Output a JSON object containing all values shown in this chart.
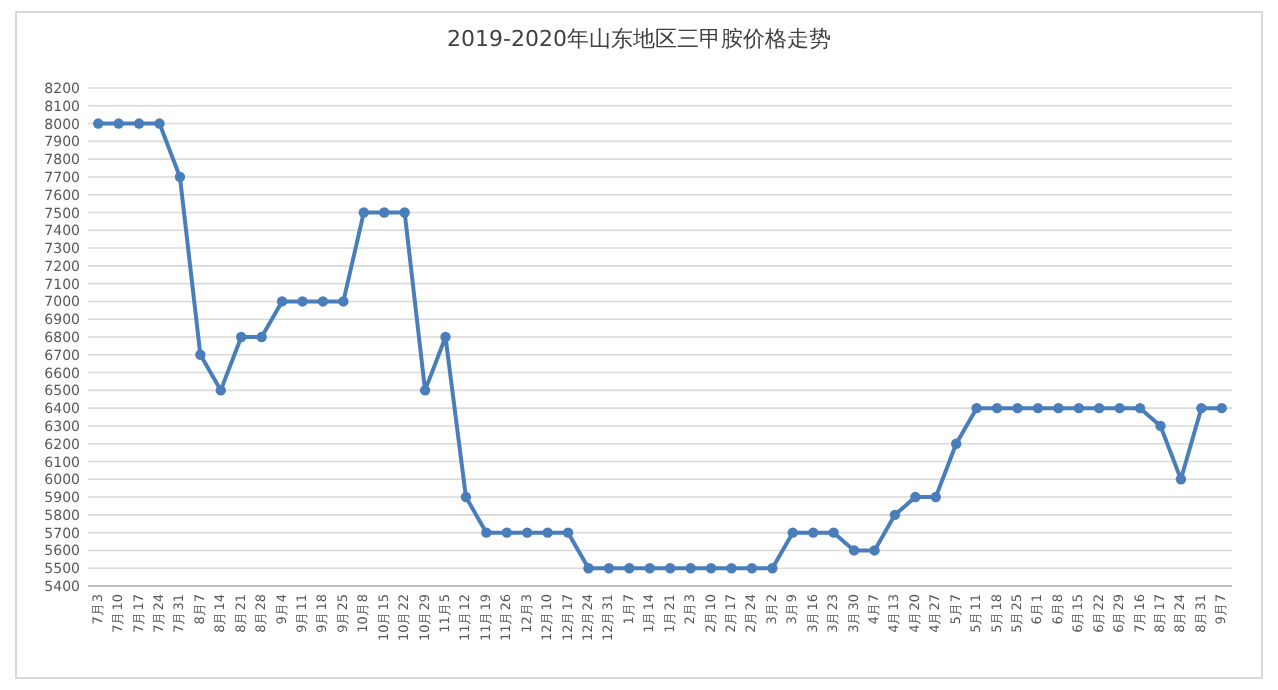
{
  "chart_data": {
    "type": "line",
    "title": "2019-2020年山东地区三甲胺价格走势",
    "categories": [
      "7月3",
      "7月10",
      "7月17",
      "7月24",
      "7月31",
      "8月7",
      "8月14",
      "8月21",
      "8月28",
      "9月4",
      "9月11",
      "9月18",
      "9月25",
      "10月8",
      "10月15",
      "10月22",
      "10月29",
      "11月5",
      "11月12",
      "11月19",
      "11月26",
      "12月3",
      "12月10",
      "12月17",
      "12月24",
      "12月31",
      "1月7",
      "1月14",
      "1月21",
      "2月3",
      "2月10",
      "2月17",
      "2月24",
      "3月2",
      "3月9",
      "3月16",
      "3月23",
      "3月30",
      "4月7",
      "4月13",
      "4月20",
      "4月27",
      "5月7",
      "5月11",
      "5月18",
      "5月25",
      "6月1",
      "6月8",
      "6月15",
      "6月22",
      "6月29",
      "7月16",
      "8月17",
      "8月24",
      "8月31",
      "9月7"
    ],
    "values": [
      8000,
      8000,
      8000,
      8000,
      7700,
      6700,
      6500,
      6800,
      6800,
      7000,
      7000,
      7000,
      7000,
      7500,
      7500,
      7500,
      6500,
      6800,
      5900,
      5700,
      5700,
      5700,
      5700,
      5700,
      5500,
      5500,
      5500,
      5500,
      5500,
      5500,
      5500,
      5500,
      5500,
      5500,
      5700,
      5700,
      5700,
      5600,
      5600,
      5800,
      5900,
      5900,
      6200,
      6400,
      6400,
      6400,
      6400,
      6400,
      6400,
      6400,
      6400,
      6400,
      6300,
      6000,
      6400,
      6400
    ],
    "color": "#4a7ebb",
    "marker": "circle",
    "grid": "y",
    "ylim": [
      5400,
      8200
    ],
    "yticks": [
      5400,
      5500,
      5600,
      5700,
      5800,
      5900,
      6000,
      6100,
      6200,
      6300,
      6400,
      6500,
      6600,
      6700,
      6800,
      6900,
      7000,
      7100,
      7200,
      7300,
      7400,
      7500,
      7600,
      7700,
      7800,
      7900,
      8000,
      8100,
      8200
    ]
  }
}
